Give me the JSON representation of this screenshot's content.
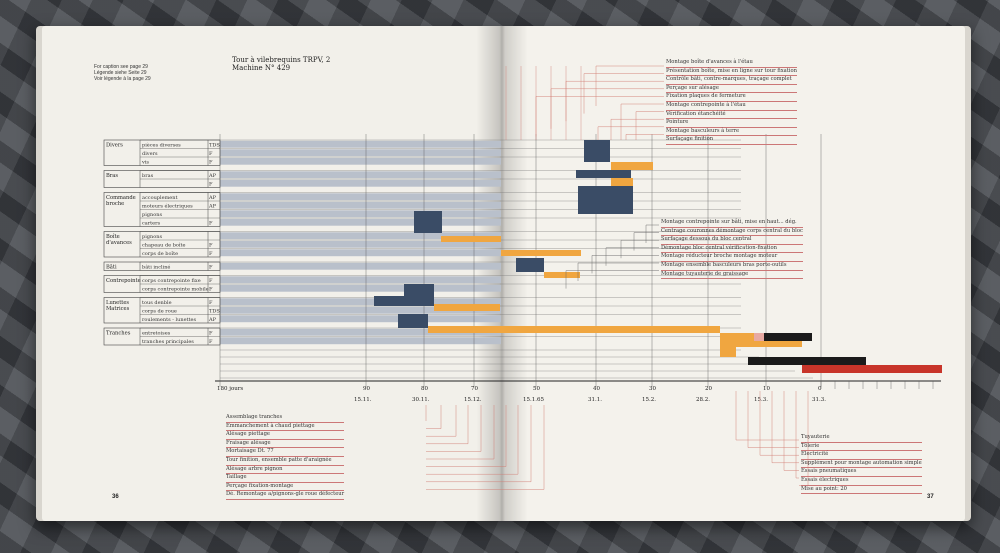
{
  "page_left": {
    "caption_lines": [
      "For caption see page 29",
      "Légende siehe Seite 29",
      "Voir légende à la page 29"
    ],
    "title_line1": "Tour à vilebrequins TRPV, 2",
    "title_line2": "Machine N° 429",
    "page_number": "36"
  },
  "page_right": {
    "page_number": "37"
  },
  "groups": [
    {
      "name": "Divers",
      "rows": [
        [
          "pièces diverses",
          "TDS"
        ],
        [
          "divers",
          "F"
        ],
        [
          "vis",
          "F"
        ]
      ]
    },
    {
      "name": "Bras",
      "rows": [
        [
          "bras",
          "AP"
        ],
        [
          "",
          "F"
        ]
      ]
    },
    {
      "name": "Commande broche",
      "rows": [
        [
          "accouplement",
          "AP"
        ],
        [
          "moteurs électriques",
          "AP"
        ],
        [
          "pignons",
          ""
        ],
        [
          "carters",
          "F"
        ]
      ]
    },
    {
      "name": "Boîte d'avances",
      "rows": [
        [
          "pignons",
          ""
        ],
        [
          "chapeau de boîte",
          "F"
        ],
        [
          "corps de boîte",
          "F"
        ]
      ]
    },
    {
      "name": "Bâti",
      "rows": [
        [
          "bâti incliné",
          "F"
        ]
      ]
    },
    {
      "name": "Contrepointe",
      "rows": [
        [
          "corps contrepointe fixe",
          "F"
        ],
        [
          "corps contrepointe mobile",
          "F"
        ]
      ]
    },
    {
      "name": "Lunettes Matrices",
      "rows": [
        [
          "tous denble",
          "F"
        ],
        [
          "corps de roue",
          "TDS"
        ],
        [
          "roulements - lunettes",
          "AP"
        ]
      ]
    },
    {
      "name": "Tranches",
      "rows": [
        [
          "entretoises",
          "F"
        ],
        [
          "tranches principales",
          "F"
        ]
      ]
    }
  ],
  "timeline": {
    "day_labels": [
      "180 jours",
      "90",
      "80",
      "70",
      "50",
      "40",
      "30",
      "20",
      "10",
      "0"
    ],
    "date_labels": [
      "15.11.",
      "30.11.",
      "15.12.",
      "15.1.65",
      "31.1.",
      "15.2.",
      "28.2.",
      "15.3.",
      "31.3."
    ]
  },
  "top_right_tasks": [
    "Montage boîte d'avances à l'étau",
    "Présentation boîte, mise en ligne sur tour fixation",
    "Contrôle bâti, contre-marques, traçage complet",
    "Perçage sur alésage",
    "Fixation plaques de fermeture",
    "Montage contrepointe à l'étau",
    "Vérification étanchéité",
    "Pointure",
    "Montage basculeurs à terre",
    "Surfaçage finition"
  ],
  "mid_right_tasks": [
    "Montage contrepointe sur bâti, mise en haut... dég.",
    "Centrage couronnes démontage corps central du bloc",
    "Surfaçage dessous du bloc central",
    "Démontage bloc central vérification-fixation",
    "Montage réducteur broche montage moteur",
    "Montage ensemble basculeurs bras porte-outils",
    "Montage tuyauterie de graissage"
  ],
  "bottom_left_tasks": [
    "Assemblage tranches",
    "Emmanchement à chaud piettage",
    "Alésage piettage",
    "Fraisage alésage",
    "Mortaisage Dt. 77",
    "Tour finition, ensemble patte d'araignée",
    "Alésage arbre pignon",
    "Taillage",
    "Perçage fixation-montage",
    "Dé. Remontage a/pignons-gle roue défecteur"
  ],
  "bottom_right_tasks": [
    "Tuyauterie",
    "Tôlerie",
    "Electricité",
    "Supplément pour montage automation simple",
    "Essais pneumatiques",
    "Essais électriques",
    "Mise au point: 20"
  ],
  "colors": {
    "paper": "#f2f0ea",
    "grey_bar": "#b9c0cb",
    "navy": "#3a4c66",
    "orange": "#f0a640",
    "red": "#c8352a",
    "black": "#1b1b1b",
    "pink": "#e7a9a3",
    "rule_red": "#d07a72"
  }
}
